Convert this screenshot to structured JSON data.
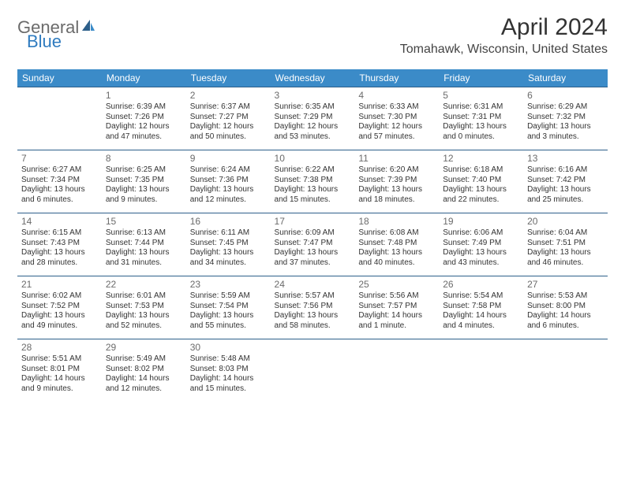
{
  "logo": {
    "text1": "General",
    "text2": "Blue"
  },
  "title": "April 2024",
  "location": "Tomahawk, Wisconsin, United States",
  "days": [
    "Sunday",
    "Monday",
    "Tuesday",
    "Wednesday",
    "Thursday",
    "Friday",
    "Saturday"
  ],
  "header_bg": "#3b8bc8",
  "header_fg": "#ffffff",
  "row_border": "#2d5f8a",
  "weeks": [
    [
      null,
      {
        "n": "1",
        "sr": "6:39 AM",
        "ss": "7:26 PM",
        "dl": "12 hours and 47 minutes."
      },
      {
        "n": "2",
        "sr": "6:37 AM",
        "ss": "7:27 PM",
        "dl": "12 hours and 50 minutes."
      },
      {
        "n": "3",
        "sr": "6:35 AM",
        "ss": "7:29 PM",
        "dl": "12 hours and 53 minutes."
      },
      {
        "n": "4",
        "sr": "6:33 AM",
        "ss": "7:30 PM",
        "dl": "12 hours and 57 minutes."
      },
      {
        "n": "5",
        "sr": "6:31 AM",
        "ss": "7:31 PM",
        "dl": "13 hours and 0 minutes."
      },
      {
        "n": "6",
        "sr": "6:29 AM",
        "ss": "7:32 PM",
        "dl": "13 hours and 3 minutes."
      }
    ],
    [
      {
        "n": "7",
        "sr": "6:27 AM",
        "ss": "7:34 PM",
        "dl": "13 hours and 6 minutes."
      },
      {
        "n": "8",
        "sr": "6:25 AM",
        "ss": "7:35 PM",
        "dl": "13 hours and 9 minutes."
      },
      {
        "n": "9",
        "sr": "6:24 AM",
        "ss": "7:36 PM",
        "dl": "13 hours and 12 minutes."
      },
      {
        "n": "10",
        "sr": "6:22 AM",
        "ss": "7:38 PM",
        "dl": "13 hours and 15 minutes."
      },
      {
        "n": "11",
        "sr": "6:20 AM",
        "ss": "7:39 PM",
        "dl": "13 hours and 18 minutes."
      },
      {
        "n": "12",
        "sr": "6:18 AM",
        "ss": "7:40 PM",
        "dl": "13 hours and 22 minutes."
      },
      {
        "n": "13",
        "sr": "6:16 AM",
        "ss": "7:42 PM",
        "dl": "13 hours and 25 minutes."
      }
    ],
    [
      {
        "n": "14",
        "sr": "6:15 AM",
        "ss": "7:43 PM",
        "dl": "13 hours and 28 minutes."
      },
      {
        "n": "15",
        "sr": "6:13 AM",
        "ss": "7:44 PM",
        "dl": "13 hours and 31 minutes."
      },
      {
        "n": "16",
        "sr": "6:11 AM",
        "ss": "7:45 PM",
        "dl": "13 hours and 34 minutes."
      },
      {
        "n": "17",
        "sr": "6:09 AM",
        "ss": "7:47 PM",
        "dl": "13 hours and 37 minutes."
      },
      {
        "n": "18",
        "sr": "6:08 AM",
        "ss": "7:48 PM",
        "dl": "13 hours and 40 minutes."
      },
      {
        "n": "19",
        "sr": "6:06 AM",
        "ss": "7:49 PM",
        "dl": "13 hours and 43 minutes."
      },
      {
        "n": "20",
        "sr": "6:04 AM",
        "ss": "7:51 PM",
        "dl": "13 hours and 46 minutes."
      }
    ],
    [
      {
        "n": "21",
        "sr": "6:02 AM",
        "ss": "7:52 PM",
        "dl": "13 hours and 49 minutes."
      },
      {
        "n": "22",
        "sr": "6:01 AM",
        "ss": "7:53 PM",
        "dl": "13 hours and 52 minutes."
      },
      {
        "n": "23",
        "sr": "5:59 AM",
        "ss": "7:54 PM",
        "dl": "13 hours and 55 minutes."
      },
      {
        "n": "24",
        "sr": "5:57 AM",
        "ss": "7:56 PM",
        "dl": "13 hours and 58 minutes."
      },
      {
        "n": "25",
        "sr": "5:56 AM",
        "ss": "7:57 PM",
        "dl": "14 hours and 1 minute."
      },
      {
        "n": "26",
        "sr": "5:54 AM",
        "ss": "7:58 PM",
        "dl": "14 hours and 4 minutes."
      },
      {
        "n": "27",
        "sr": "5:53 AM",
        "ss": "8:00 PM",
        "dl": "14 hours and 6 minutes."
      }
    ],
    [
      {
        "n": "28",
        "sr": "5:51 AM",
        "ss": "8:01 PM",
        "dl": "14 hours and 9 minutes."
      },
      {
        "n": "29",
        "sr": "5:49 AM",
        "ss": "8:02 PM",
        "dl": "14 hours and 12 minutes."
      },
      {
        "n": "30",
        "sr": "5:48 AM",
        "ss": "8:03 PM",
        "dl": "14 hours and 15 minutes."
      },
      null,
      null,
      null,
      null
    ]
  ],
  "labels": {
    "sunrise": "Sunrise: ",
    "sunset": "Sunset: ",
    "daylight": "Daylight: "
  }
}
